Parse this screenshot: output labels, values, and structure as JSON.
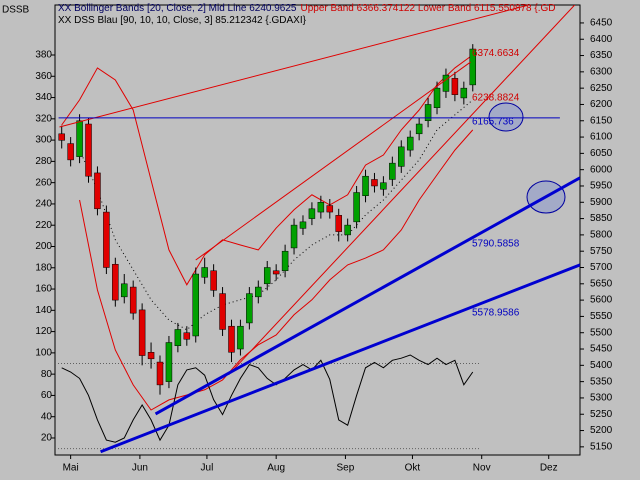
{
  "chart_data": {
    "type": "candlestick",
    "label": "DSSB",
    "legend": [
      [
        {
          "text": "XX Bollinger Bands [20, Close, 2] Mid Line 6240.9625",
          "color": "#000060"
        },
        {
          "text": "Upper Band 6366.374122 Lower Band 6115.550878 {.GD",
          "color": "#d00000"
        }
      ],
      [
        {
          "text": "XX DSS Blau [90, 10, 10, Close, 3] 85.212342 {.GDAXI}",
          "color": "#000000"
        }
      ]
    ],
    "x": [
      -4,
      0,
      4,
      8,
      12,
      16,
      20,
      24,
      28,
      32,
      36,
      40,
      44,
      48,
      52,
      56,
      60,
      64,
      68,
      72,
      76,
      80,
      84,
      88,
      92,
      96,
      100,
      104,
      108,
      112,
      116,
      120,
      124,
      128,
      132,
      136,
      140,
      144,
      148,
      152,
      156,
      160,
      164,
      168,
      172,
      176,
      180
    ],
    "open": [
      6110,
      6080,
      6040,
      6140,
      5990,
      5870,
      5710,
      5610,
      5640,
      5570,
      5440,
      5410,
      5350,
      5460,
      5500,
      5490,
      5670,
      5690,
      5620,
      5520,
      5450,
      5530,
      5610,
      5650,
      5690,
      5690,
      5760,
      5820,
      5850,
      5870,
      5890,
      5860,
      5800,
      5840,
      5920,
      5970,
      5940,
      5970,
      6010,
      6060,
      6110,
      6150,
      6190,
      6240,
      6280,
      6220,
      6260
    ],
    "high": [
      6135,
      6100,
      6170,
      6160,
      6010,
      5890,
      5730,
      5680,
      5660,
      5590,
      5470,
      5430,
      5490,
      5530,
      5520,
      5700,
      5730,
      5710,
      5640,
      5540,
      5540,
      5640,
      5660,
      5720,
      5710,
      5770,
      5850,
      5860,
      5900,
      5920,
      5910,
      5880,
      5850,
      5950,
      6000,
      5990,
      5980,
      6040,
      6090,
      6120,
      6160,
      6220,
      6270,
      6310,
      6300,
      6270,
      6385
    ],
    "low": [
      6065,
      6010,
      6020,
      5960,
      5860,
      5680,
      5580,
      5590,
      5540,
      5400,
      5390,
      5310,
      5330,
      5440,
      5460,
      5470,
      5650,
      5610,
      5490,
      5410,
      5430,
      5510,
      5590,
      5630,
      5660,
      5670,
      5740,
      5800,
      5830,
      5850,
      5850,
      5780,
      5780,
      5820,
      5900,
      5930,
      5920,
      5950,
      5990,
      6040,
      6090,
      6130,
      6170,
      6220,
      6210,
      6200,
      6240
    ],
    "close": [
      6090,
      6030,
      6150,
      5980,
      5880,
      5700,
      5600,
      5650,
      5560,
      5430,
      5420,
      5340,
      5470,
      5510,
      5480,
      5680,
      5700,
      5630,
      5510,
      5440,
      5520,
      5620,
      5640,
      5700,
      5680,
      5750,
      5830,
      5840,
      5880,
      5900,
      5870,
      5810,
      5830,
      5930,
      5980,
      5950,
      5960,
      6020,
      6070,
      6100,
      6140,
      6200,
      6250,
      6290,
      6230,
      6250,
      6370
    ],
    "up_color": "#00a000",
    "down_color": "#e00000",
    "series": [
      {
        "color": "#e00000",
        "dash": false,
        "x": [
          -4,
          4,
          12,
          20,
          28,
          36,
          44,
          52,
          60,
          68,
          76,
          84,
          92,
          100,
          108,
          116,
          124,
          132,
          140,
          148,
          156,
          164,
          172,
          180
        ],
        "values": [
          6137,
          6214,
          6312,
          6275,
          6183,
          5968,
          5754,
          5647,
          5739,
          5785,
          5769,
          5754,
          5821,
          5877,
          5923,
          5892,
          5923,
          6014,
          6045,
          6122,
          6183,
          6260,
          6312,
          6352
        ]
      },
      {
        "color": "#000000",
        "dash": true,
        "x": [
          -4,
          4,
          12,
          20,
          28,
          36,
          44,
          52,
          60,
          68,
          76,
          84,
          92,
          100,
          108,
          116,
          124,
          132,
          140,
          148,
          156,
          164,
          172,
          180
        ],
        "values": [
          null,
          6060,
          5938,
          5785,
          5693,
          5601,
          5539,
          5509,
          5555,
          5585,
          5601,
          5616,
          5662,
          5723,
          5769,
          5800,
          5800,
          5861,
          5907,
          5968,
          6030,
          6122,
          6168,
          6214
        ]
      },
      {
        "color": "#e00000",
        "dash": false,
        "x": [
          -4,
          4,
          12,
          20,
          28,
          36,
          44,
          52,
          60,
          68,
          76,
          84,
          92,
          100,
          108,
          116,
          124,
          132,
          140,
          148,
          156,
          164,
          172,
          180
        ],
        "values": [
          null,
          5907,
          5631,
          5447,
          5340,
          5263,
          5294,
          5309,
          5325,
          5355,
          5417,
          5463,
          5493,
          5555,
          5601,
          5662,
          5708,
          5729,
          5754,
          5815,
          5907,
          5984,
          6060,
          6122
        ]
      },
      {
        "color": "#000000",
        "dash": false,
        "axis": "y2",
        "x": [
          -4,
          0,
          4,
          8,
          12,
          16,
          20,
          24,
          28,
          32,
          36,
          40,
          44,
          48,
          52,
          56,
          60,
          64,
          68,
          72,
          76,
          80,
          84,
          88,
          92,
          96,
          100,
          104,
          108,
          112,
          116,
          120,
          124,
          128,
          132,
          136,
          140,
          144,
          148,
          152,
          156,
          160,
          164,
          168,
          172,
          176,
          180
        ],
        "values": [
          86,
          82,
          76,
          60,
          37,
          18,
          16,
          20,
          37,
          51,
          37,
          18,
          32,
          70,
          84,
          86,
          79,
          56,
          42,
          60,
          76,
          89,
          86,
          76,
          70,
          76,
          84,
          89,
          84,
          93,
          75,
          37,
          32,
          60,
          86,
          91,
          86,
          93,
          95,
          98,
          93,
          89,
          95,
          89,
          93,
          70,
          82
        ]
      }
    ],
    "levels": [
      90,
      10
    ],
    "level_color": "#606060",
    "trendlines": [
      {
        "x": [
          -5,
          205
        ],
        "values": [
          6131,
          6505
        ],
        "color": "#e00000",
        "width": 1
      },
      {
        "x": [
          56,
          179
        ],
        "values": [
          5723,
          6330
        ],
        "color": "#e00000",
        "width": 1
      },
      {
        "x": [
          70.7,
          225.6
        ],
        "values": [
          5371,
          6505
        ],
        "color": "#e00000",
        "width": 1
      },
      {
        "x": [
          -5.4,
          219
        ],
        "values": [
          6159,
          6159
        ],
        "color": "#0000c0",
        "width": 1
      },
      {
        "x": [
          38,
          228
        ],
        "values": [
          5251,
          5975
        ],
        "color": "#0000d0",
        "width": 3
      },
      {
        "x": [
          13.4,
          228
        ],
        "values": [
          5135,
          5708
        ],
        "color": "#0000d0",
        "width": 3
      }
    ],
    "annotations": [
      {
        "value": 6374.6634,
        "label": "6374.6634",
        "color": "#d00000"
      },
      {
        "value": 6238.8824,
        "label": "6238.8824",
        "color": "#d00000"
      },
      {
        "value": 6165.736,
        "label": "6165.736",
        "color": "#0000c0"
      },
      {
        "value": 5790.5858,
        "label": "5790.5858",
        "color": "#0000c0"
      },
      {
        "value": 5578.9586,
        "label": "5578.9586",
        "color": "#0000c0"
      }
    ],
    "xlim": [
      -7,
      228
    ],
    "xticks": [
      {
        "value": 0,
        "label": "Mai"
      },
      {
        "value": 31,
        "label": "Jun"
      },
      {
        "value": 61,
        "label": "Jul"
      },
      {
        "value": 92,
        "label": "Aug"
      },
      {
        "value": 123,
        "label": "Sep"
      },
      {
        "value": 153,
        "label": "Okt"
      },
      {
        "value": 184,
        "label": "Nov"
      },
      {
        "value": 214,
        "label": "Dez"
      }
    ],
    "ylim": [
      5125,
      6505
    ],
    "yticks": [
      5150,
      5200,
      5250,
      5300,
      5350,
      5400,
      5450,
      5500,
      5550,
      5600,
      5650,
      5700,
      5750,
      5800,
      5850,
      5900,
      5950,
      6000,
      6050,
      6100,
      6150,
      6200,
      6250,
      6300,
      6350,
      6400,
      6450
    ],
    "y2lim": [
      4,
      427
    ],
    "y2ticks": [
      20,
      40,
      60,
      80,
      100,
      120,
      140,
      160,
      180,
      200,
      220,
      240,
      260,
      280,
      300,
      320,
      340,
      360,
      380
    ],
    "grid": false
  }
}
